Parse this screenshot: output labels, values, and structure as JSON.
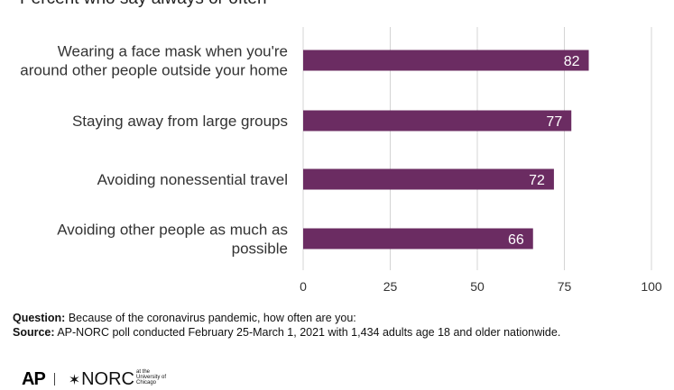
{
  "subtitle": "Percent who say always or often",
  "chart_data": {
    "type": "bar",
    "orientation": "horizontal",
    "categories": [
      [
        "Wearing a face mask when you're",
        "around other people outside your home"
      ],
      [
        "Staying away from large groups"
      ],
      [
        "Avoiding nonessential travel"
      ],
      [
        "Avoiding other people as much as",
        "possible"
      ]
    ],
    "values": [
      82,
      77,
      72,
      66
    ],
    "xticks": [
      "0",
      "25",
      "50",
      "75",
      "100"
    ],
    "xlim": [
      0,
      100
    ],
    "grid": true,
    "bar_color": "#6b2c62",
    "grid_color": "#d4d4d4"
  },
  "notes": {
    "question_label": "Question:",
    "question_text": "Because of the coronavirus pandemic, how often are you:",
    "source_label": "Source:",
    "source_text": "AP-NORC poll conducted February 25-March 1, 2021 with 1,434 adults age 18 and older nationwide."
  },
  "logos": {
    "ap": "AP",
    "norc": "NORC",
    "norc_small": "at the University of Chicago"
  }
}
